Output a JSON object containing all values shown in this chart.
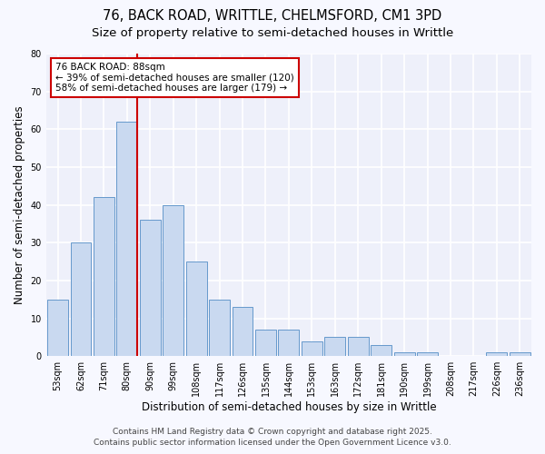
{
  "title1": "76, BACK ROAD, WRITTLE, CHELMSFORD, CM1 3PD",
  "title2": "Size of property relative to semi-detached houses in Writtle",
  "xlabel": "Distribution of semi-detached houses by size in Writtle",
  "ylabel": "Number of semi-detached properties",
  "categories": [
    "53sqm",
    "62sqm",
    "71sqm",
    "80sqm",
    "90sqm",
    "99sqm",
    "108sqm",
    "117sqm",
    "126sqm",
    "135sqm",
    "144sqm",
    "153sqm",
    "163sqm",
    "172sqm",
    "181sqm",
    "190sqm",
    "199sqm",
    "208sqm",
    "217sqm",
    "226sqm",
    "236sqm"
  ],
  "values": [
    15,
    30,
    42,
    62,
    36,
    40,
    25,
    15,
    13,
    7,
    7,
    4,
    5,
    5,
    3,
    1,
    1,
    0,
    0,
    1,
    1
  ],
  "bar_color": "#c9d9f0",
  "bar_edge_color": "#6699cc",
  "red_line_bar_index": 3,
  "annotation_title": "76 BACK ROAD: 88sqm",
  "annotation_line1": "← 39% of semi-detached houses are smaller (120)",
  "annotation_line2": "58% of semi-detached houses are larger (179) →",
  "annotation_box_facecolor": "#ffffff",
  "annotation_box_edgecolor": "#cc0000",
  "ylim": [
    0,
    80
  ],
  "yticks": [
    0,
    10,
    20,
    30,
    40,
    50,
    60,
    70,
    80
  ],
  "footer1": "Contains HM Land Registry data © Crown copyright and database right 2025.",
  "footer2": "Contains public sector information licensed under the Open Government Licence v3.0.",
  "bg_color": "#f7f8ff",
  "plot_bg_color": "#eef0fa",
  "grid_color": "#ffffff",
  "title_fontsize": 10.5,
  "subtitle_fontsize": 9.5,
  "label_fontsize": 8.5,
  "tick_fontsize": 7,
  "annotation_fontsize": 7.5,
  "footer_fontsize": 6.5
}
